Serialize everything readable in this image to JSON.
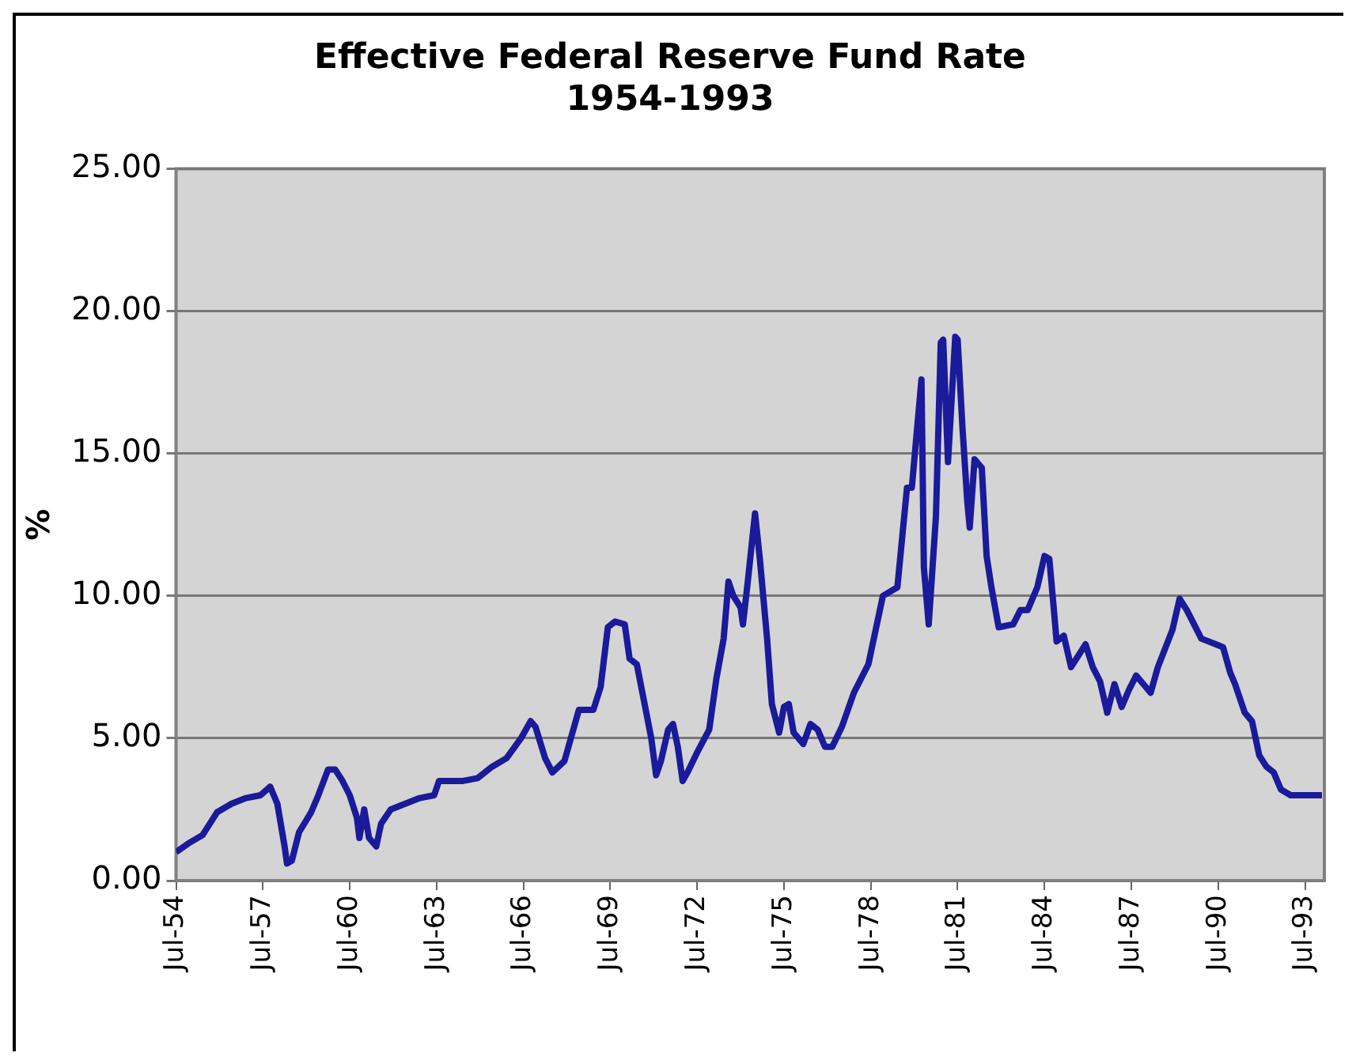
{
  "chart_data": {
    "type": "line",
    "title": [
      "Effective Federal Reserve Fund Rate",
      "1954-1993"
    ],
    "ylabel": "%",
    "x": [
      "1954-07",
      "1954-12",
      "1955-06",
      "1955-12",
      "1956-06",
      "1956-12",
      "1957-06",
      "1957-10",
      "1958-01",
      "1958-04",
      "1958-05",
      "1958-07",
      "1958-10",
      "1959-03",
      "1959-06",
      "1959-10",
      "1960-01",
      "1960-04",
      "1960-07",
      "1960-10",
      "1960-11",
      "1961-01",
      "1961-03",
      "1961-06",
      "1961-08",
      "1961-12",
      "1962-06",
      "1962-12",
      "1963-06",
      "1963-08",
      "1964-06",
      "1964-12",
      "1965-06",
      "1965-12",
      "1966-06",
      "1966-10",
      "1966-12",
      "1967-04",
      "1967-07",
      "1967-12",
      "1968-06",
      "1968-12",
      "1969-03",
      "1969-06",
      "1969-09",
      "1970-01",
      "1970-03",
      "1970-06",
      "1970-09",
      "1970-12",
      "1971-02",
      "1971-04",
      "1971-07",
      "1971-09",
      "1971-11",
      "1972-01",
      "1972-03",
      "1972-07",
      "1972-12",
      "1973-03",
      "1973-06",
      "1973-08",
      "1973-10",
      "1974-01",
      "1974-02",
      "1974-04",
      "1974-07",
      "1974-09",
      "1974-12",
      "1975-02",
      "1975-05",
      "1975-07",
      "1975-09",
      "1975-11",
      "1976-03",
      "1976-06",
      "1976-09",
      "1976-12",
      "1977-03",
      "1977-07",
      "1977-12",
      "1978-06",
      "1978-12",
      "1979-06",
      "1979-10",
      "1979-12",
      "1980-04",
      "1980-05",
      "1980-07",
      "1980-10",
      "1980-12",
      "1981-01",
      "1981-03",
      "1981-06",
      "1981-07",
      "1981-09",
      "1981-11",
      "1981-12",
      "1982-02",
      "1982-05",
      "1982-07",
      "1982-09",
      "1982-12",
      "1983-06",
      "1983-09",
      "1983-12",
      "1984-04",
      "1984-07",
      "1984-09",
      "1984-11",
      "1984-12",
      "1985-03",
      "1985-06",
      "1985-12",
      "1986-03",
      "1986-06",
      "1986-09",
      "1986-12",
      "1987-03",
      "1987-06",
      "1987-09",
      "1987-12",
      "1988-03",
      "1988-06",
      "1988-12",
      "1989-03",
      "1989-06",
      "1989-09",
      "1989-12",
      "1990-06",
      "1990-09",
      "1990-12",
      "1991-02",
      "1991-06",
      "1991-09",
      "1991-12",
      "1992-03",
      "1992-06",
      "1992-09",
      "1993-01",
      "1993-06",
      "1993-12",
      "1994-02"
    ],
    "series": [
      {
        "color": "#1a1a9a",
        "values": [
          1.0,
          1.3,
          1.6,
          2.4,
          2.7,
          2.9,
          3.0,
          3.3,
          2.7,
          1.2,
          0.6,
          0.7,
          1.7,
          2.4,
          3.0,
          3.9,
          3.9,
          3.5,
          3.0,
          2.2,
          1.5,
          2.5,
          1.5,
          1.2,
          2.0,
          2.5,
          2.7,
          2.9,
          3.0,
          3.5,
          3.5,
          3.6,
          4.0,
          4.3,
          5.0,
          5.6,
          5.4,
          4.3,
          3.8,
          4.2,
          6.0,
          6.0,
          6.8,
          8.9,
          9.1,
          9.0,
          7.8,
          7.6,
          6.3,
          5.0,
          3.7,
          4.2,
          5.3,
          5.5,
          4.7,
          3.5,
          3.8,
          4.5,
          5.3,
          7.1,
          8.5,
          10.5,
          10.0,
          9.6,
          9.0,
          10.5,
          12.9,
          11.3,
          8.5,
          6.2,
          5.2,
          6.1,
          6.2,
          5.2,
          4.8,
          5.5,
          5.3,
          4.7,
          4.7,
          5.4,
          6.6,
          7.6,
          10.0,
          10.3,
          13.8,
          13.8,
          17.6,
          11.0,
          9.0,
          12.8,
          18.9,
          19.0,
          14.7,
          19.1,
          19.0,
          15.9,
          13.3,
          12.4,
          14.8,
          14.5,
          11.4,
          10.3,
          8.9,
          9.0,
          9.5,
          9.5,
          10.3,
          11.4,
          11.3,
          9.4,
          8.4,
          8.6,
          7.5,
          8.3,
          7.5,
          7.0,
          5.9,
          6.9,
          6.1,
          6.7,
          7.2,
          6.9,
          6.6,
          7.5,
          8.8,
          9.9,
          9.5,
          9.0,
          8.5,
          8.3,
          8.2,
          7.3,
          6.9,
          5.9,
          5.6,
          4.4,
          4.0,
          3.8,
          3.2,
          3.0,
          3.0,
          3.0,
          3.0
        ]
      }
    ],
    "xlim": [
      "1954-07",
      "1994-03"
    ],
    "xticks": [
      {
        "value": "1954-07",
        "label": "Jul-54"
      },
      {
        "value": "1957-07",
        "label": "Jul-57"
      },
      {
        "value": "1960-07",
        "label": "Jul-60"
      },
      {
        "value": "1963-07",
        "label": "Jul-63"
      },
      {
        "value": "1966-07",
        "label": "Jul-66"
      },
      {
        "value": "1969-07",
        "label": "Jul-69"
      },
      {
        "value": "1972-07",
        "label": "Jul-72"
      },
      {
        "value": "1975-07",
        "label": "Jul-75"
      },
      {
        "value": "1978-07",
        "label": "Jul-78"
      },
      {
        "value": "1981-07",
        "label": "Jul-81"
      },
      {
        "value": "1984-07",
        "label": "Jul-84"
      },
      {
        "value": "1987-07",
        "label": "Jul-87"
      },
      {
        "value": "1990-07",
        "label": "Jul-90"
      },
      {
        "value": "1993-07",
        "label": "Jul-93"
      }
    ],
    "ylim": [
      0,
      25
    ],
    "yticks": [
      {
        "value": 0,
        "label": "0.00"
      },
      {
        "value": 5,
        "label": "5.00"
      },
      {
        "value": 10,
        "label": "10.00"
      },
      {
        "value": 15,
        "label": "15.00"
      },
      {
        "value": 20,
        "label": "20.00"
      },
      {
        "value": 25,
        "label": "25.00"
      }
    ],
    "grid": "y",
    "legend": false,
    "marker": "none",
    "line_style": "solid"
  }
}
